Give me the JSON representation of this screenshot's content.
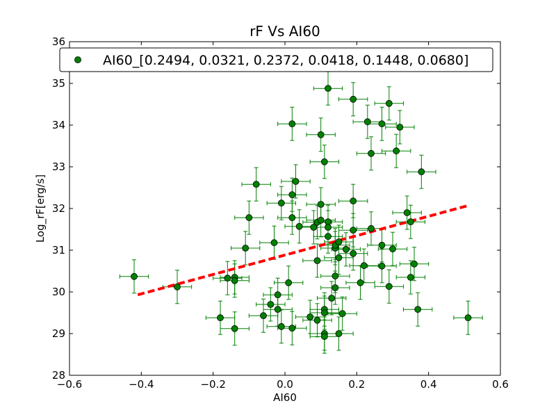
{
  "chart_data": {
    "type": "scatter",
    "title": "rF Vs AI60",
    "xlabel": "AI60",
    "ylabel": "Log_rF[erg/s]",
    "xlim": [
      -0.6,
      0.6
    ],
    "ylim": [
      28,
      36
    ],
    "xticks": [
      -0.6,
      -0.4,
      -0.2,
      0.0,
      0.2,
      0.4,
      0.6
    ],
    "xtick_labels": [
      "−0.6",
      "−0.4",
      "−0.2",
      "0.0",
      "0.2",
      "0.4",
      "0.6"
    ],
    "yticks": [
      28,
      29,
      30,
      31,
      32,
      33,
      34,
      35,
      36
    ],
    "ytick_labels": [
      "28",
      "29",
      "30",
      "31",
      "32",
      "33",
      "34",
      "35",
      "36"
    ],
    "legend": {
      "label": "AI60_[0.2494, 0.0321, 0.2372, 0.0418, 0.1448, 0.0680]",
      "location": "top"
    },
    "colors": {
      "points": "#008000",
      "marker_edge": "#000000",
      "errorbar": "#008000",
      "fit_line": "#ff0000"
    },
    "error": {
      "x": 0.04,
      "y": 0.4
    },
    "fit_line": {
      "x": [
        -0.41,
        0.51
      ],
      "y": [
        29.93,
        32.07
      ]
    },
    "series": [
      {
        "name": "AI60_[0.2494, 0.0321, 0.2372, 0.0418, 0.1448, 0.0680]",
        "points": [
          [
            -0.42,
            30.37
          ],
          [
            -0.3,
            30.12
          ],
          [
            -0.18,
            29.38
          ],
          [
            -0.16,
            30.33
          ],
          [
            -0.14,
            30.35
          ],
          [
            -0.14,
            30.27
          ],
          [
            -0.14,
            29.12
          ],
          [
            -0.11,
            31.05
          ],
          [
            -0.1,
            31.78
          ],
          [
            -0.08,
            32.58
          ],
          [
            -0.06,
            29.43
          ],
          [
            -0.04,
            29.7
          ],
          [
            -0.03,
            31.18
          ],
          [
            -0.02,
            29.93
          ],
          [
            -0.02,
            29.58
          ],
          [
            -0.01,
            29.17
          ],
          [
            -0.01,
            32.13
          ],
          [
            0.01,
            30.22
          ],
          [
            0.02,
            34.03
          ],
          [
            0.02,
            32.33
          ],
          [
            0.02,
            31.78
          ],
          [
            0.02,
            29.13
          ],
          [
            0.03,
            32.65
          ],
          [
            0.04,
            31.57
          ],
          [
            0.07,
            29.4
          ],
          [
            0.08,
            31.55
          ],
          [
            0.09,
            30.75
          ],
          [
            0.09,
            31.67
          ],
          [
            0.09,
            29.32
          ],
          [
            0.1,
            32.1
          ],
          [
            0.1,
            33.77
          ],
          [
            0.1,
            31.72
          ],
          [
            0.11,
            29.58
          ],
          [
            0.11,
            29.5
          ],
          [
            0.11,
            33.12
          ],
          [
            0.11,
            29.0
          ],
          [
            0.11,
            28.93
          ],
          [
            0.12,
            34.88
          ],
          [
            0.12,
            31.68
          ],
          [
            0.12,
            31.33
          ],
          [
            0.12,
            31.55
          ],
          [
            0.13,
            29.85
          ],
          [
            0.14,
            31.05
          ],
          [
            0.14,
            31.12
          ],
          [
            0.14,
            30.1
          ],
          [
            0.14,
            30.38
          ],
          [
            0.15,
            29.0
          ],
          [
            0.15,
            31.2
          ],
          [
            0.15,
            30.82
          ],
          [
            0.16,
            29.48
          ],
          [
            0.17,
            31.02
          ],
          [
            0.19,
            34.62
          ],
          [
            0.19,
            32.18
          ],
          [
            0.19,
            31.48
          ],
          [
            0.19,
            30.92
          ],
          [
            0.21,
            30.22
          ],
          [
            0.22,
            30.63
          ],
          [
            0.23,
            34.08
          ],
          [
            0.24,
            33.32
          ],
          [
            0.24,
            31.52
          ],
          [
            0.27,
            34.03
          ],
          [
            0.27,
            31.12
          ],
          [
            0.27,
            30.62
          ],
          [
            0.29,
            34.52
          ],
          [
            0.29,
            30.13
          ],
          [
            0.3,
            31.03
          ],
          [
            0.31,
            33.38
          ],
          [
            0.32,
            33.95
          ],
          [
            0.34,
            31.9
          ],
          [
            0.35,
            30.35
          ],
          [
            0.35,
            31.68
          ],
          [
            0.36,
            30.67
          ],
          [
            0.37,
            29.58
          ],
          [
            0.38,
            32.88
          ],
          [
            0.51,
            29.38
          ]
        ]
      }
    ]
  }
}
